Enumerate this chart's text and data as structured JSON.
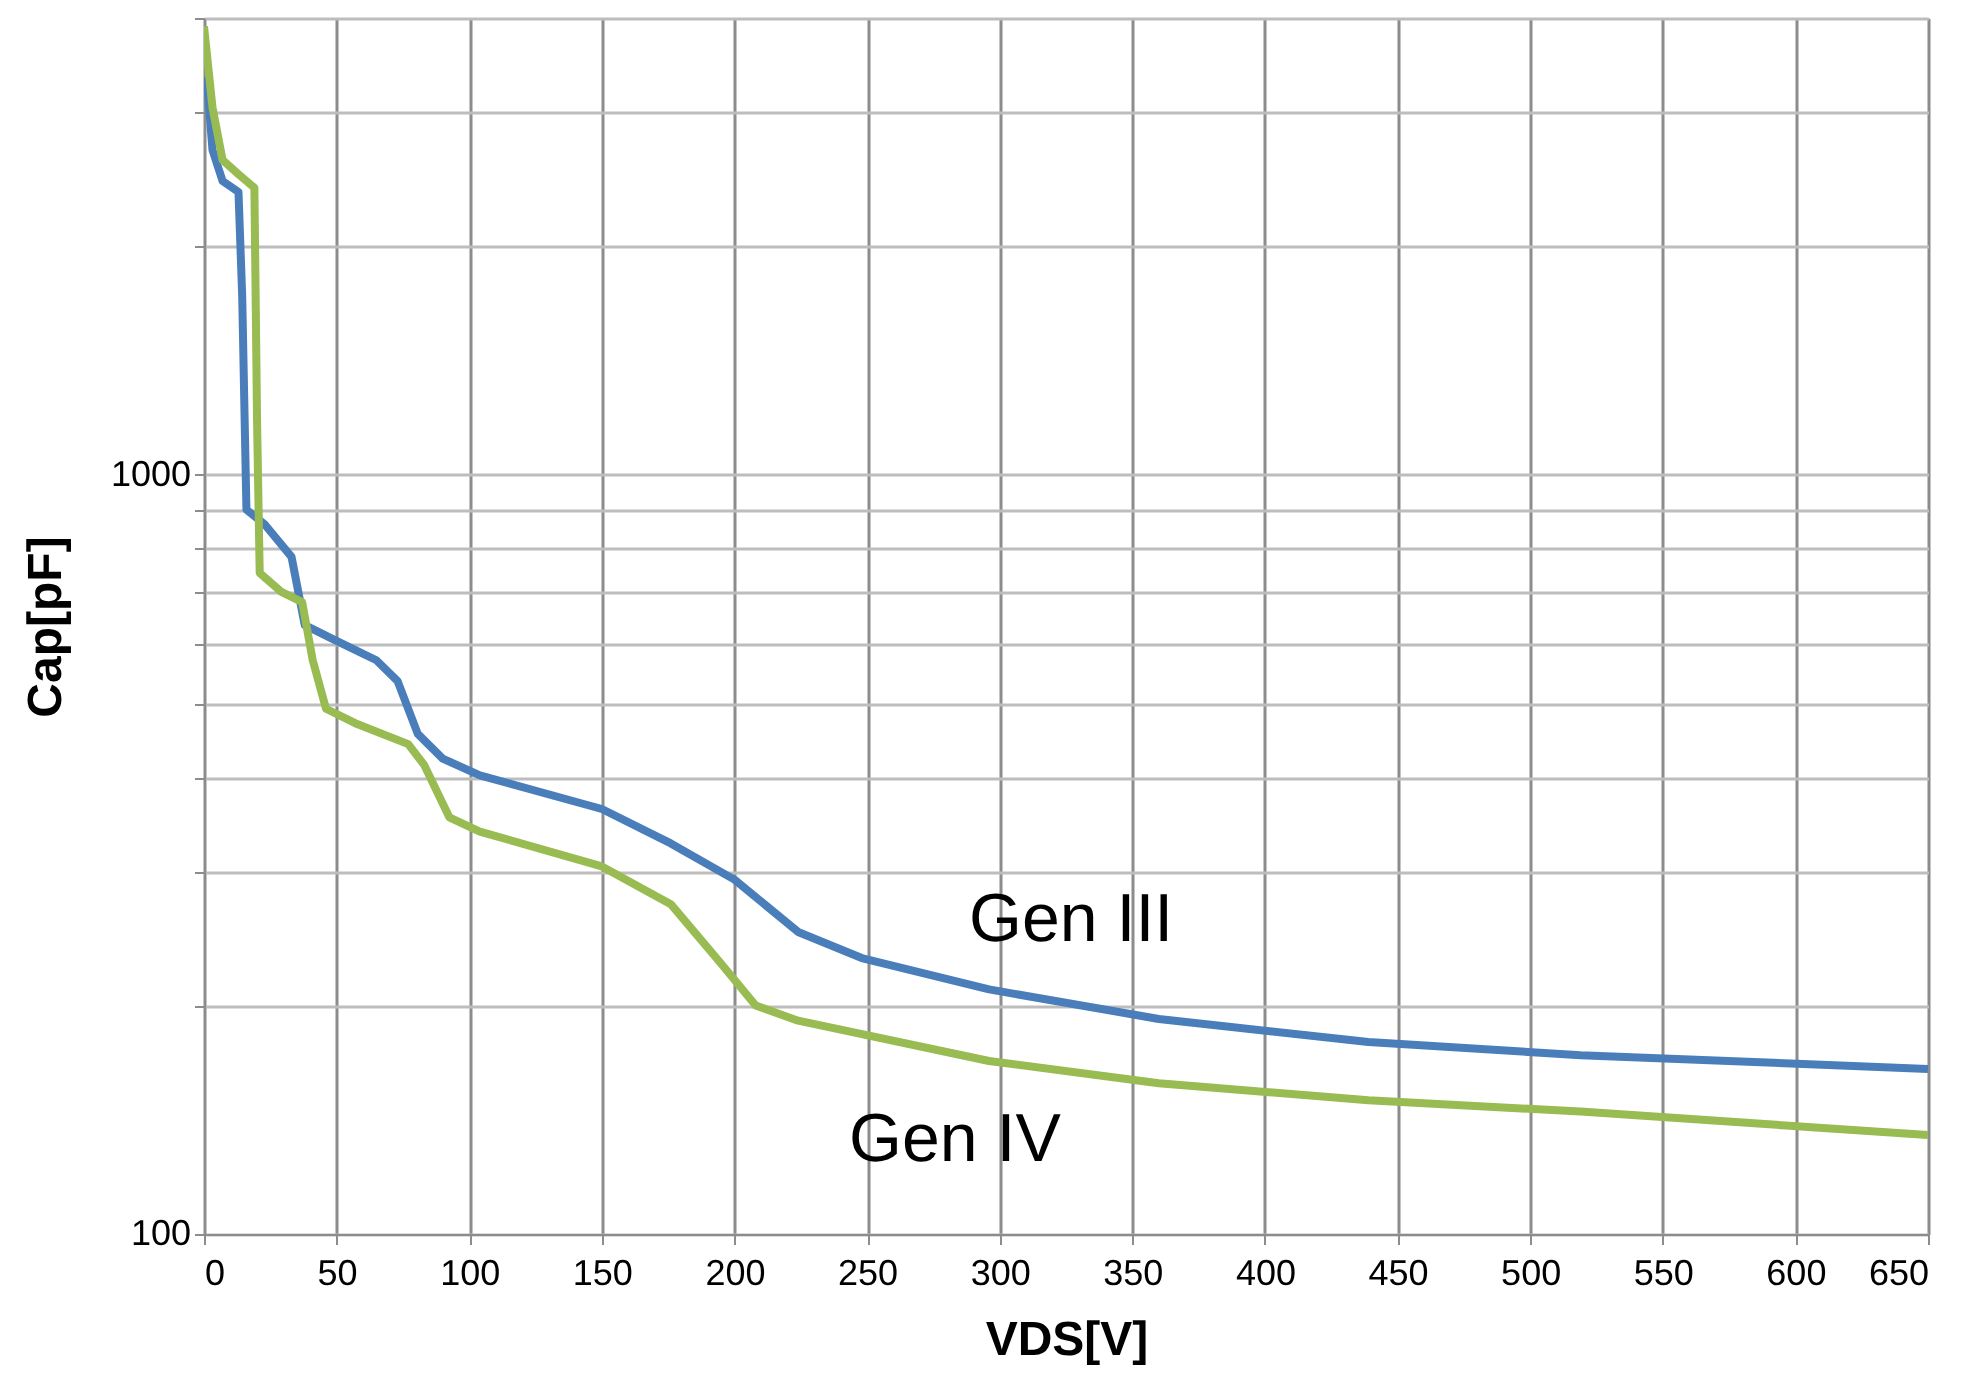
{
  "chart_data": {
    "type": "line",
    "xlabel": "VDS[V]",
    "ylabel": "Cap[pF]",
    "log": "y",
    "grid": true,
    "legend": false,
    "marker": "none",
    "line_style": "solid",
    "xlim": [
      0,
      650
    ],
    "xticks": [
      0,
      50,
      100,
      150,
      200,
      250,
      300,
      350,
      400,
      450,
      500,
      550,
      600,
      650
    ],
    "ylim": [
      100,
      4000
    ],
    "yticks": [
      100,
      {
        "value": 200,
        "label": null
      },
      {
        "value": 300,
        "label": null
      },
      {
        "value": 400,
        "label": null
      },
      {
        "value": 500,
        "label": null
      },
      {
        "value": 600,
        "label": null
      },
      {
        "value": 700,
        "label": null
      },
      {
        "value": 800,
        "label": null
      },
      {
        "value": 900,
        "label": null
      },
      1000,
      {
        "value": 2000,
        "label": null
      },
      {
        "value": 3000,
        "label": null
      },
      {
        "value": 4000,
        "label": null
      }
    ],
    "series": [
      {
        "name": "Gen III",
        "color": "#4a7ebb",
        "x": [
          1,
          3.2,
          7,
          13,
          14.4,
          16,
          23,
          33,
          38,
          49,
          65,
          73,
          80.6,
          90,
          104,
          150,
          176,
          200,
          224,
          248,
          296,
          360,
          439,
          519,
          650
        ],
        "values": [
          3350,
          2680,
          2440,
          2360,
          1720,
          900,
          860,
          780,
          634,
          607,
          570,
          535,
          456,
          423,
          402,
          363,
          327,
          293,
          250,
          231,
          210,
          192,
          179,
          172,
          165
        ]
      },
      {
        "name": "Gen IV",
        "color": "#98bb52",
        "x": [
          0,
          3.2,
          7,
          13,
          19,
          20,
          21,
          29,
          37,
          41,
          46,
          57,
          77,
          83,
          92.5,
          104,
          150,
          176,
          195,
          208,
          224,
          296,
          360,
          439,
          519,
          650
        ],
        "values": [
          3900,
          3050,
          2600,
          2490,
          2390,
          1180,
          743,
          702,
          680,
          570,
          492,
          471,
          442,
          415,
          354,
          339,
          305,
          272,
          227,
          200,
          191,
          169,
          158,
          150,
          145,
          135
        ]
      }
    ]
  }
}
